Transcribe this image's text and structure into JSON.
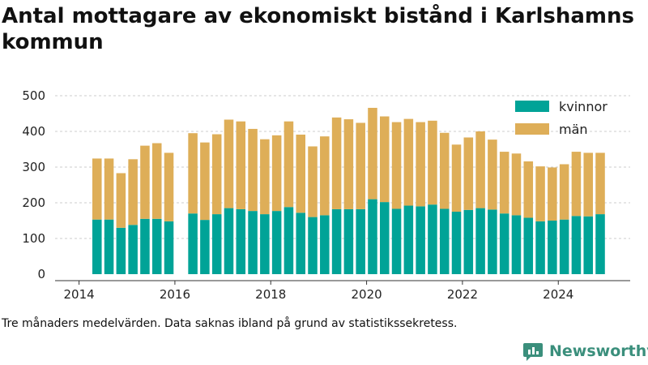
{
  "title": "Antal mottagare av ekonomiskt bistånd i Karlshamns kommun",
  "caption": "Tre månaders medelvärden. Data saknas ibland på grund av statistikssekretess.",
  "brand": "Newsworthy",
  "colors": {
    "kvinnor": "#00a397",
    "man": "#deae58",
    "axis": "#333333",
    "grid": "#cccccc",
    "brand": "#3b8f7c"
  },
  "chart_data": {
    "type": "bar",
    "stacked": true,
    "grid": "horizontal",
    "legend_position": "top-right",
    "ylim": [
      0,
      500
    ],
    "yticks": [
      0,
      100,
      200,
      300,
      400,
      500
    ],
    "xlim": [
      2013.5,
      2025.5
    ],
    "xticks": [
      2014,
      2016,
      2018,
      2020,
      2022,
      2024
    ],
    "x": [
      2014.375,
      2014.625,
      2014.875,
      2015.125,
      2015.375,
      2015.625,
      2015.875,
      2016.375,
      2016.625,
      2016.875,
      2017.125,
      2017.375,
      2017.625,
      2017.875,
      2018.125,
      2018.375,
      2018.625,
      2018.875,
      2019.125,
      2019.375,
      2019.625,
      2019.875,
      2020.125,
      2020.375,
      2020.625,
      2020.875,
      2021.125,
      2021.375,
      2021.625,
      2021.875,
      2022.125,
      2022.375,
      2022.625,
      2022.875,
      2023.125,
      2023.375,
      2023.625,
      2023.875,
      2024.125,
      2024.375,
      2024.625,
      2024.875
    ],
    "series": [
      {
        "name": "kvinnor",
        "color": "#00a397",
        "values": [
          153,
          153,
          130,
          138,
          155,
          155,
          148,
          170,
          152,
          168,
          185,
          182,
          177,
          168,
          177,
          188,
          172,
          160,
          165,
          182,
          182,
          182,
          210,
          202,
          183,
          192,
          190,
          195,
          183,
          175,
          180,
          185,
          181,
          170,
          165,
          158,
          148,
          150,
          153,
          163,
          162,
          168
        ]
      },
      {
        "name": "män",
        "color": "#deae58",
        "values": [
          171,
          171,
          153,
          184,
          205,
          212,
          192,
          225,
          217,
          224,
          248,
          246,
          230,
          210,
          212,
          240,
          219,
          198,
          221,
          257,
          252,
          242,
          256,
          240,
          243,
          243,
          236,
          235,
          213,
          188,
          203,
          215,
          196,
          173,
          173,
          158,
          154,
          149,
          155,
          180,
          178,
          172
        ]
      }
    ]
  }
}
